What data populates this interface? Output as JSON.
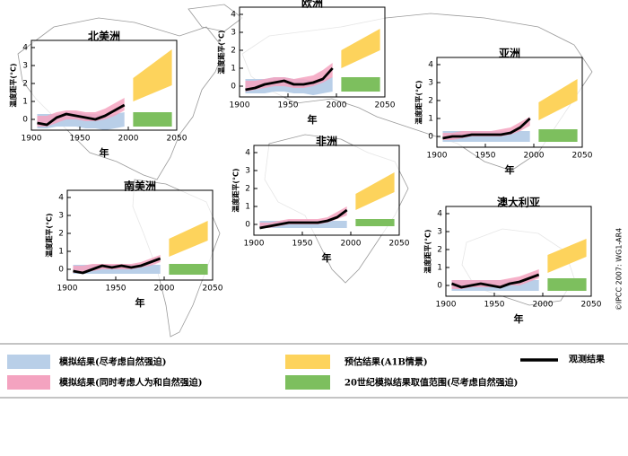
{
  "copyright": "©IPCC 2007: WG1-AR4",
  "legend": {
    "natural": {
      "name": "模拟结果(尽考虑自然强迫)",
      "color": "#b9cfe8"
    },
    "all_forcing": {
      "name": "模拟结果(同时考虑人为和自然强迫)",
      "color": "#f4a3c0"
    },
    "projection": {
      "name": "预估结果(A1B情景)",
      "color": "#fdd35c"
    },
    "natural_range": {
      "name": "20世纪模拟结果取值范围(尽考虑自然强迫)",
      "color": "#7dbf5e"
    },
    "observed": {
      "name": "观测结果",
      "color": "#000000"
    }
  },
  "chart_data": [
    {
      "type": "line",
      "title": "北美洲",
      "xlabel": "年",
      "ylabel": "温度距平(°C)",
      "xlim": [
        1900,
        2050
      ],
      "xticks": [
        1900,
        1950,
        2000,
        2050
      ],
      "ylim": [
        -0.6,
        4.4
      ],
      "yticks": [
        0,
        1,
        2,
        3,
        4
      ],
      "observed": {
        "x": [
          1906,
          1916,
          1926,
          1936,
          1946,
          1956,
          1966,
          1976,
          1986,
          1996
        ],
        "values": [
          -0.2,
          -0.3,
          0.1,
          0.3,
          0.2,
          0.1,
          0.0,
          0.2,
          0.5,
          0.8
        ]
      },
      "natural": {
        "low": [
          -0.5,
          -0.5,
          -0.4,
          -0.4,
          -0.4,
          -0.5,
          -0.5,
          -0.6,
          -0.5,
          -0.4
        ],
        "high": [
          0.3,
          0.3,
          0.3,
          0.4,
          0.4,
          0.3,
          0.3,
          0.2,
          0.3,
          0.4
        ]
      },
      "all_forcing": {
        "low": [
          -0.4,
          -0.4,
          -0.2,
          0,
          0,
          -0.1,
          -0.1,
          0,
          0.2,
          0.5
        ],
        "high": [
          0.2,
          0.2,
          0.4,
          0.5,
          0.5,
          0.4,
          0.4,
          0.6,
          0.9,
          1.2
        ]
      },
      "projection": {
        "x": [
          2005,
          2045
        ],
        "low": [
          1.0,
          1.9
        ],
        "high": [
          2.3,
          3.9
        ]
      },
      "natural_range": {
        "x": [
          2005,
          2045
        ],
        "low": -0.4,
        "high": 0.4
      }
    },
    {
      "type": "line",
      "title": "欧洲",
      "xlabel": "年",
      "ylabel": "温度距平(°C)",
      "xlim": [
        1900,
        2050
      ],
      "xticks": [
        1900,
        1950,
        2000,
        2050
      ],
      "ylim": [
        -0.6,
        4.4
      ],
      "yticks": [
        0,
        1,
        2,
        3,
        4
      ],
      "observed": {
        "x": [
          1906,
          1916,
          1926,
          1936,
          1946,
          1956,
          1966,
          1976,
          1986,
          1996
        ],
        "values": [
          -0.2,
          -0.1,
          0.1,
          0.2,
          0.3,
          0.1,
          0.1,
          0.2,
          0.4,
          1.0
        ]
      },
      "natural": {
        "low": [
          -0.4,
          -0.4,
          -0.4,
          -0.3,
          -0.3,
          -0.4,
          -0.4,
          -0.5,
          -0.4,
          -0.3
        ],
        "high": [
          0.4,
          0.4,
          0.4,
          0.5,
          0.5,
          0.4,
          0.4,
          0.3,
          0.4,
          0.5
        ]
      },
      "all_forcing": {
        "low": [
          -0.3,
          -0.2,
          -0.1,
          0,
          0,
          -0.1,
          -0.1,
          0,
          0.2,
          0.5
        ],
        "high": [
          0.3,
          0.3,
          0.4,
          0.5,
          0.5,
          0.4,
          0.5,
          0.6,
          0.9,
          1.3
        ]
      },
      "projection": {
        "x": [
          2005,
          2045
        ],
        "low": [
          1.0,
          2.0
        ],
        "high": [
          2.0,
          3.2
        ]
      },
      "natural_range": {
        "x": [
          2005,
          2045
        ],
        "low": -0.3,
        "high": 0.5
      }
    },
    {
      "type": "line",
      "title": "亚洲",
      "xlabel": "年",
      "ylabel": "温度距平(°C)",
      "xlim": [
        1900,
        2050
      ],
      "xticks": [
        1900,
        1950,
        2000,
        2050
      ],
      "ylim": [
        -0.6,
        4.4
      ],
      "yticks": [
        0,
        1,
        2,
        3,
        4
      ],
      "observed": {
        "x": [
          1906,
          1916,
          1926,
          1936,
          1946,
          1956,
          1966,
          1976,
          1986,
          1996
        ],
        "values": [
          -0.1,
          0,
          0,
          0.1,
          0.1,
          0.1,
          0.1,
          0.2,
          0.5,
          1.0
        ]
      },
      "natural": {
        "low": [
          -0.3,
          -0.3,
          -0.3,
          -0.3,
          -0.3,
          -0.3,
          -0.3,
          -0.3,
          -0.3,
          -0.3
        ],
        "high": [
          0.3,
          0.3,
          0.3,
          0.3,
          0.3,
          0.3,
          0.3,
          0.3,
          0.3,
          0.3
        ]
      },
      "all_forcing": {
        "low": [
          -0.2,
          -0.2,
          -0.1,
          0,
          0,
          0,
          0,
          0.1,
          0.3,
          0.6
        ],
        "high": [
          0.2,
          0.2,
          0.3,
          0.3,
          0.3,
          0.3,
          0.4,
          0.5,
          0.8,
          1.1
        ]
      },
      "projection": {
        "x": [
          2005,
          2045
        ],
        "low": [
          0.9,
          2.0
        ],
        "high": [
          1.9,
          3.2
        ]
      },
      "natural_range": {
        "x": [
          2005,
          2045
        ],
        "low": -0.3,
        "high": 0.4
      }
    },
    {
      "type": "line",
      "title": "南美洲",
      "xlabel": "年",
      "ylabel": "温度距平(°C)",
      "xlim": [
        1900,
        2050
      ],
      "xticks": [
        1900,
        1950,
        2000,
        2050
      ],
      "ylim": [
        -0.6,
        4.4
      ],
      "yticks": [
        0,
        1,
        2,
        3,
        4
      ],
      "observed": {
        "x": [
          1906,
          1916,
          1926,
          1936,
          1946,
          1956,
          1966,
          1976,
          1986,
          1996
        ],
        "values": [
          -0.1,
          -0.2,
          0,
          0.2,
          0.1,
          0.2,
          0.1,
          0.2,
          0.4,
          0.6
        ]
      },
      "natural": {
        "low": [
          -0.25,
          -0.25,
          -0.25,
          -0.25,
          -0.25,
          -0.25,
          -0.25,
          -0.25,
          -0.25,
          -0.25
        ],
        "high": [
          0.25,
          0.25,
          0.25,
          0.25,
          0.25,
          0.25,
          0.25,
          0.25,
          0.25,
          0.25
        ]
      },
      "all_forcing": {
        "low": [
          -0.2,
          -0.2,
          -0.1,
          0,
          0,
          0,
          0,
          0.1,
          0.2,
          0.4
        ],
        "high": [
          0.2,
          0.2,
          0.3,
          0.3,
          0.3,
          0.3,
          0.3,
          0.4,
          0.6,
          0.8
        ]
      },
      "projection": {
        "x": [
          2005,
          2045
        ],
        "low": [
          0.7,
          1.6
        ],
        "high": [
          1.7,
          2.7
        ]
      },
      "natural_range": {
        "x": [
          2005,
          2045
        ],
        "low": -0.3,
        "high": 0.3
      }
    },
    {
      "type": "line",
      "title": "非洲",
      "xlabel": "年",
      "ylabel": "温度距平(°C)",
      "xlim": [
        1900,
        2050
      ],
      "xticks": [
        1900,
        1950,
        2000,
        2050
      ],
      "ylim": [
        -0.6,
        4.4
      ],
      "yticks": [
        0,
        1,
        2,
        3,
        4
      ],
      "observed": {
        "x": [
          1906,
          1916,
          1926,
          1936,
          1946,
          1956,
          1966,
          1976,
          1986,
          1996
        ],
        "values": [
          -0.2,
          -0.1,
          0,
          0.1,
          0.1,
          0.1,
          0.1,
          0.2,
          0.4,
          0.8
        ]
      },
      "natural": {
        "low": [
          -0.2,
          -0.2,
          -0.2,
          -0.2,
          -0.2,
          -0.2,
          -0.2,
          -0.2,
          -0.2,
          -0.2
        ],
        "high": [
          0.2,
          0.2,
          0.2,
          0.2,
          0.2,
          0.2,
          0.2,
          0.2,
          0.2,
          0.2
        ]
      },
      "all_forcing": {
        "low": [
          -0.2,
          -0.2,
          -0.1,
          0,
          0,
          0,
          0,
          0.1,
          0.3,
          0.5
        ],
        "high": [
          0.1,
          0.1,
          0.2,
          0.3,
          0.3,
          0.3,
          0.3,
          0.4,
          0.7,
          1.0
        ]
      },
      "projection": {
        "x": [
          2005,
          2045
        ],
        "low": [
          0.8,
          1.8
        ],
        "high": [
          1.7,
          2.9
        ]
      },
      "natural_range": {
        "x": [
          2005,
          2045
        ],
        "low": -0.1,
        "high": 0.3
      }
    },
    {
      "type": "line",
      "title": "澳大利亚",
      "xlabel": "年",
      "ylabel": "温度距平(°C)",
      "xlim": [
        1900,
        2050
      ],
      "xticks": [
        1900,
        1950,
        2000,
        2050
      ],
      "ylim": [
        -0.6,
        4.4
      ],
      "yticks": [
        0,
        1,
        2,
        3,
        4
      ],
      "observed": {
        "x": [
          1906,
          1916,
          1926,
          1936,
          1946,
          1956,
          1966,
          1976,
          1986,
          1996
        ],
        "values": [
          0.1,
          -0.1,
          0,
          0.1,
          0,
          -0.1,
          0.1,
          0.2,
          0.4,
          0.6
        ]
      },
      "natural": {
        "low": [
          -0.3,
          -0.3,
          -0.3,
          -0.3,
          -0.3,
          -0.3,
          -0.3,
          -0.3,
          -0.3,
          -0.3
        ],
        "high": [
          0.3,
          0.3,
          0.3,
          0.3,
          0.3,
          0.3,
          0.3,
          0.3,
          0.3,
          0.3
        ]
      },
      "all_forcing": {
        "low": [
          -0.2,
          -0.2,
          -0.1,
          -0.1,
          -0.1,
          -0.1,
          0,
          0,
          0.2,
          0.4
        ],
        "high": [
          0.3,
          0.3,
          0.3,
          0.3,
          0.3,
          0.3,
          0.4,
          0.5,
          0.7,
          0.9
        ]
      },
      "projection": {
        "x": [
          2005,
          2045
        ],
        "low": [
          0.7,
          1.6
        ],
        "high": [
          1.7,
          2.6
        ]
      },
      "natural_range": {
        "x": [
          2005,
          2045
        ],
        "low": -0.3,
        "high": 0.4
      }
    }
  ]
}
